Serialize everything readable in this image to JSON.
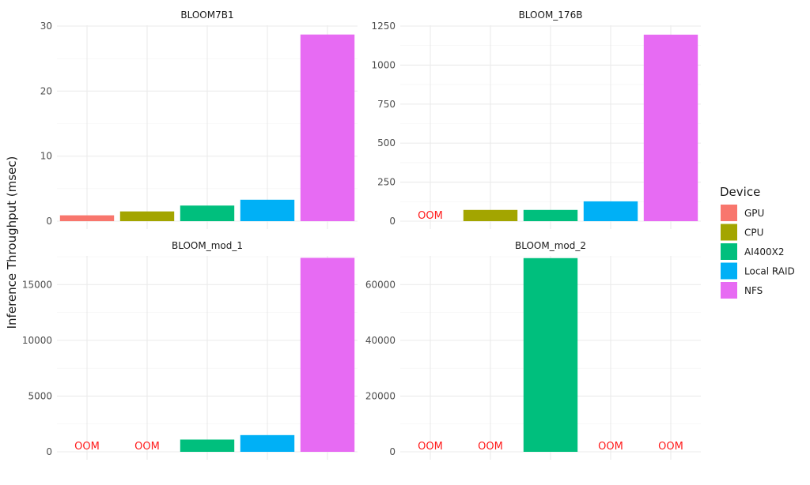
{
  "chart_data": {
    "type": "bar",
    "ylabel": "Inference Throughput (msec)",
    "categories": [
      "GPU",
      "CPU",
      "AI400X2",
      "Local RAID",
      "NFS"
    ],
    "legend": {
      "title": "Device",
      "position": "right",
      "items": [
        {
          "label": "GPU",
          "color": "#F8766D"
        },
        {
          "label": "CPU",
          "color": "#A3A500"
        },
        {
          "label": "AI400X2",
          "color": "#00BF7D"
        },
        {
          "label": "Local RAID",
          "color": "#00B0F6"
        },
        {
          "label": "NFS",
          "color": "#E76BF3"
        }
      ]
    },
    "missing_label": "OOM",
    "missing_color": "#FF0000",
    "grid": true,
    "panels": [
      {
        "title": "BLOOM7B1",
        "ylim": [
          0,
          30
        ],
        "yticks": [
          0,
          10,
          20,
          30
        ],
        "ytick_labels": [
          "0",
          "10",
          "20",
          "30"
        ],
        "values": [
          0.9,
          1.5,
          2.4,
          3.3,
          28.7
        ]
      },
      {
        "title": "BLOOM_176B",
        "ylim": [
          0,
          1250
        ],
        "yticks": [
          0,
          250,
          500,
          750,
          1000,
          1250
        ],
        "ytick_labels": [
          "0",
          "250",
          "500",
          "750",
          "1000",
          "1250"
        ],
        "values": [
          null,
          72,
          72,
          127,
          1195
        ]
      },
      {
        "title": "BLOOM_mod_1",
        "ylim": [
          0,
          17500
        ],
        "yticks": [
          0,
          5000,
          10000,
          15000
        ],
        "ytick_labels": [
          "0",
          "5000",
          "10000",
          "15000"
        ],
        "values": [
          null,
          null,
          1100,
          1500,
          17400
        ]
      },
      {
        "title": "BLOOM_mod_2",
        "ylim": [
          0,
          70000
        ],
        "yticks": [
          0,
          20000,
          40000,
          60000
        ],
        "ytick_labels": [
          "0",
          "20000",
          "40000",
          "60000"
        ],
        "values": [
          null,
          null,
          69500,
          null,
          null
        ]
      }
    ]
  }
}
